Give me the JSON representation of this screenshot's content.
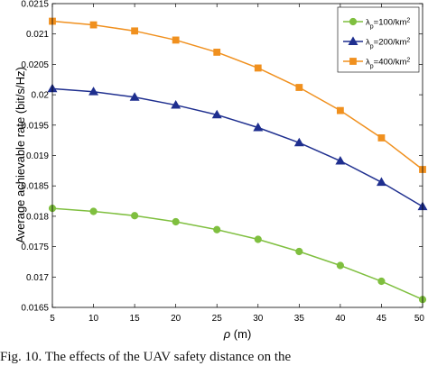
{
  "chart_data": {
    "type": "line",
    "x": [
      5,
      10,
      15,
      20,
      25,
      30,
      35,
      40,
      45,
      50
    ],
    "x_tick_labels": [
      "5",
      "10",
      "15",
      "20",
      "25",
      "30",
      "35",
      "40",
      "45",
      "50"
    ],
    "y_tick_labels": [
      "0.0165",
      "0.017",
      "0.0175",
      "0.018",
      "0.0185",
      "0.019",
      "0.0195",
      "0.02",
      "0.0205",
      "0.021",
      "0.0215"
    ],
    "xlabel_symbol": "ρ",
    "xlabel_unit": " (m)",
    "ylabel": "Average achievable rate (bit/s/Hz)",
    "xlim": [
      5,
      50
    ],
    "ylim": [
      0.0165,
      0.0215
    ],
    "grid": false,
    "legend_position": "top-right",
    "series": [
      {
        "name_symbol": "λ",
        "name_sub": "p",
        "name_value": "=100/km",
        "name_sup": "2",
        "color": "#7fbf3f",
        "marker": "circle",
        "values": [
          0.01813,
          0.01808,
          0.01801,
          0.01791,
          0.01778,
          0.01762,
          0.01742,
          0.01719,
          0.01693,
          0.01663
        ]
      },
      {
        "name_symbol": "λ",
        "name_sub": "p",
        "name_value": "=200/km",
        "name_sup": "2",
        "color": "#1f2f8f",
        "marker": "triangle",
        "values": [
          0.0201,
          0.02005,
          0.01996,
          0.01983,
          0.01967,
          0.01946,
          0.01921,
          0.01891,
          0.01856,
          0.01816
        ]
      },
      {
        "name_symbol": "λ",
        "name_sub": "p",
        "name_value": "=400/km",
        "name_sup": "2",
        "color": "#f0901e",
        "marker": "square",
        "values": [
          0.02121,
          0.02115,
          0.02105,
          0.0209,
          0.0207,
          0.02044,
          0.02012,
          0.01974,
          0.01929,
          0.01877
        ]
      }
    ]
  },
  "caption": "Fig. 10. The effects of the UAV safety distance on the"
}
